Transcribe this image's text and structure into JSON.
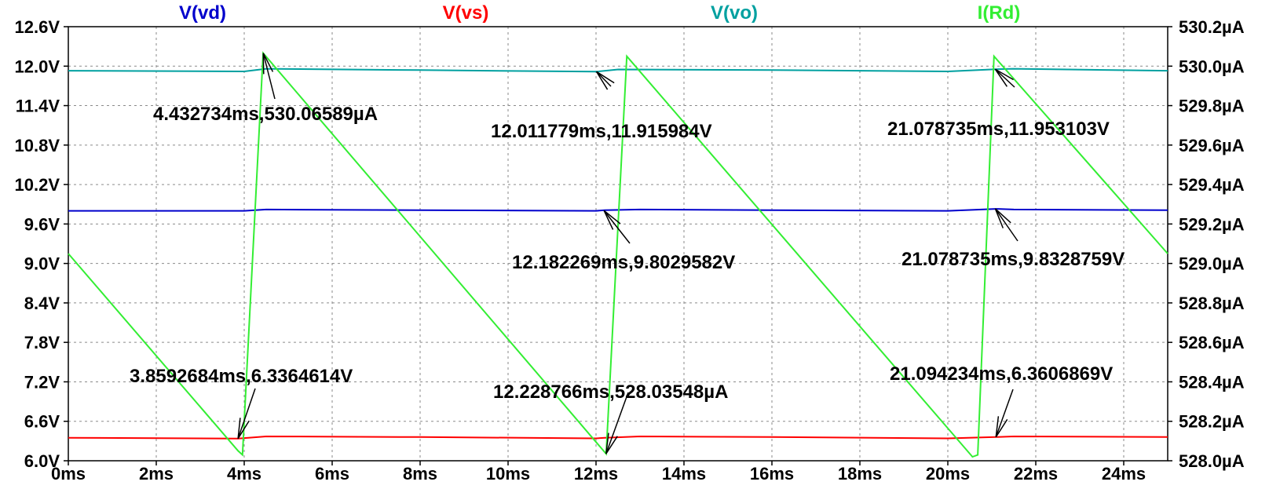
{
  "chart_data": {
    "type": "line",
    "xlabel": "",
    "x_ticks": [
      "0ms",
      "2ms",
      "4ms",
      "6ms",
      "8ms",
      "10ms",
      "12ms",
      "14ms",
      "16ms",
      "18ms",
      "20ms",
      "22ms",
      "24ms"
    ],
    "x_tick_values": [
      0,
      2,
      4,
      6,
      8,
      10,
      12,
      14,
      16,
      18,
      20,
      22,
      24
    ],
    "xlim": [
      0,
      25
    ],
    "y_left_ticks": [
      "6.0V",
      "6.6V",
      "7.2V",
      "7.8V",
      "8.4V",
      "9.0V",
      "9.6V",
      "10.2V",
      "10.8V",
      "11.4V",
      "12.0V",
      "12.6V"
    ],
    "y_left_tick_values": [
      6.0,
      6.6,
      7.2,
      7.8,
      8.4,
      9.0,
      9.6,
      10.2,
      10.8,
      11.4,
      12.0,
      12.6
    ],
    "y_left_lim": [
      6.0,
      12.6
    ],
    "y_right_ticks": [
      "528.0µA",
      "528.2µA",
      "528.4µA",
      "528.6µA",
      "528.8µA",
      "529.0µA",
      "529.2µA",
      "529.4µA",
      "529.6µA",
      "529.8µA",
      "530.0µA",
      "530.2µA"
    ],
    "y_right_tick_values": [
      528.0,
      528.2,
      528.4,
      528.6,
      528.8,
      529.0,
      529.2,
      529.4,
      529.6,
      529.8,
      530.0,
      530.2
    ],
    "y_right_lim": [
      528.0,
      530.2
    ],
    "grid": true,
    "legend_placement": "top",
    "series": [
      {
        "name": "V(vd)",
        "color": "#0000cc",
        "axis": "left",
        "x": [
          0,
          4,
          4.5,
          8,
          12,
          12.2,
          13,
          16,
          20,
          21.1,
          21.5,
          25
        ],
        "y": [
          9.8,
          9.8,
          9.82,
          9.81,
          9.8,
          9.81,
          9.82,
          9.81,
          9.8,
          9.83,
          9.82,
          9.81
        ]
      },
      {
        "name": "V(vs)",
        "color": "#ff0000",
        "axis": "left",
        "x": [
          0,
          3.86,
          4.5,
          8,
          12,
          12.2,
          13,
          16,
          20,
          21.09,
          21.5,
          25
        ],
        "y": [
          6.35,
          6.336,
          6.37,
          6.36,
          6.34,
          6.35,
          6.37,
          6.36,
          6.34,
          6.36,
          6.37,
          6.36
        ]
      },
      {
        "name": "V(vo)",
        "color": "#00a0a0",
        "axis": "left",
        "x": [
          0,
          4,
          4.5,
          8,
          12.01,
          12.5,
          16,
          20,
          21.08,
          21.5,
          25
        ],
        "y": [
          11.93,
          11.92,
          11.96,
          11.94,
          11.916,
          11.95,
          11.94,
          11.92,
          11.953,
          11.96,
          11.93
        ]
      },
      {
        "name": "I(Rd)",
        "color": "#33ee33",
        "axis": "right",
        "x": [
          0,
          3.86,
          3.96,
          4.43,
          12.23,
          12.7,
          20.56,
          20.68,
          21.05,
          25
        ],
        "y": [
          529.05,
          528.05,
          528.03,
          530.066,
          528.035,
          530.05,
          528.02,
          528.03,
          530.05,
          529.05
        ]
      }
    ],
    "annotations": [
      {
        "label": "4.432734ms,530.06589µA",
        "x": 4.432734,
        "y": 530.06589,
        "axis": "right"
      },
      {
        "label": "12.011779ms,11.915984V",
        "x": 12.011779,
        "y": 11.915984,
        "axis": "left"
      },
      {
        "label": "21.078735ms,11.953103V",
        "x": 21.078735,
        "y": 11.953103,
        "axis": "left"
      },
      {
        "label": "12.182269ms,9.8029582V",
        "x": 12.182269,
        "y": 9.8029582,
        "axis": "left"
      },
      {
        "label": "21.078735ms,9.8328759V",
        "x": 21.078735,
        "y": 9.8328759,
        "axis": "left"
      },
      {
        "label": "3.8592684ms,6.3364614V",
        "x": 3.8592684,
        "y": 6.3364614,
        "axis": "left"
      },
      {
        "label": "12.228766ms,528.03548µA",
        "x": 12.228766,
        "y": 528.03548,
        "axis": "right"
      },
      {
        "label": "21.094234ms,6.3606869V",
        "x": 21.094234,
        "y": 6.3606869,
        "axis": "left"
      }
    ]
  }
}
